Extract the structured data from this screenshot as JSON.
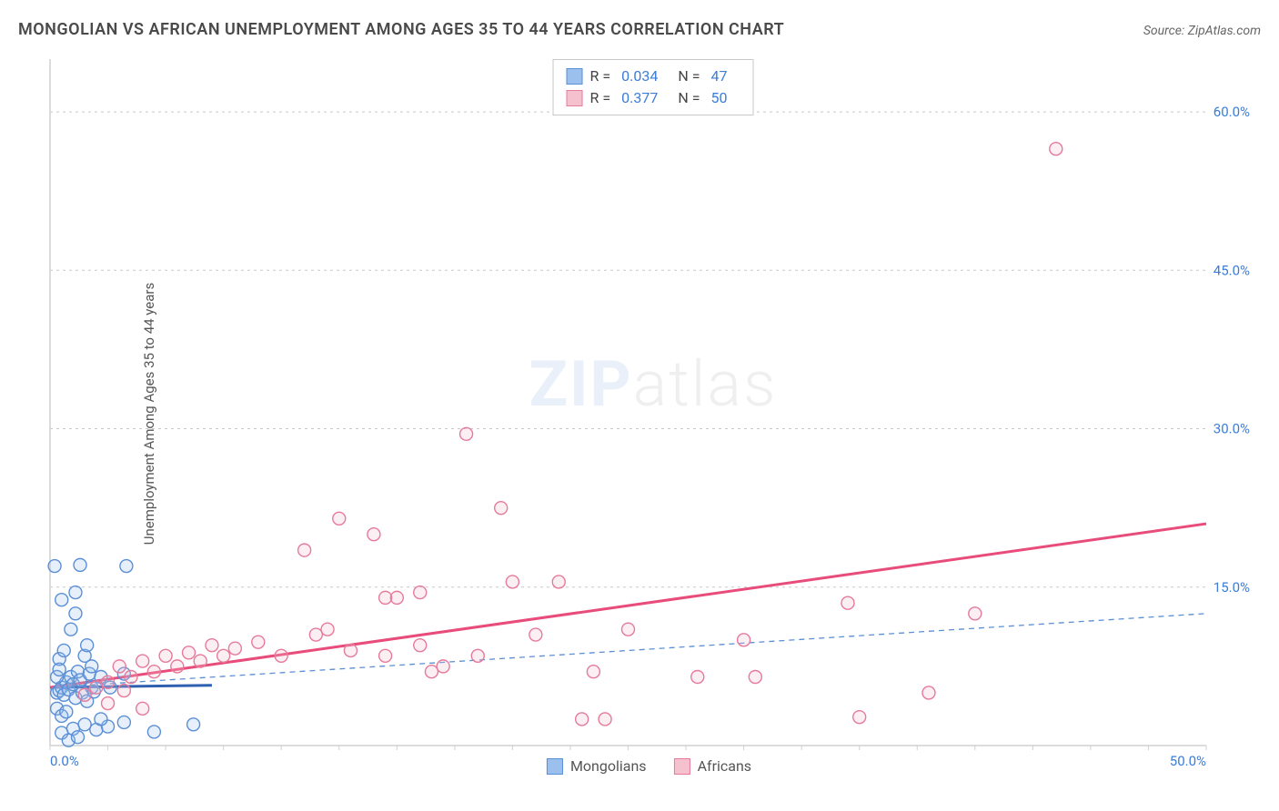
{
  "title": "MONGOLIAN VS AFRICAN UNEMPLOYMENT AMONG AGES 35 TO 44 YEARS CORRELATION CHART",
  "source_label": "Source:",
  "source_name": "ZipAtlas.com",
  "y_axis_label": "Unemployment Among Ages 35 to 44 years",
  "watermark_a": "ZIP",
  "watermark_b": "atlas",
  "chart": {
    "type": "scatter",
    "xlim": [
      0,
      50
    ],
    "ylim": [
      0,
      65
    ],
    "x_ticks": [
      0,
      50
    ],
    "x_tick_labels": [
      "0.0%",
      "50.0%"
    ],
    "y_ticks_right": [
      15,
      30,
      45,
      60
    ],
    "y_tick_labels": [
      "15.0%",
      "30.0%",
      "45.0%",
      "60.0%"
    ],
    "grid_color": "#c8c8c8",
    "axis_color": "#d0d0d0",
    "tick_label_color": "#3b7dd8",
    "tick_label_fontsize": 15,
    "background_color": "#ffffff",
    "marker_radius": 7,
    "marker_stroke_width": 1.4,
    "marker_fill_opacity": 0.25,
    "series": [
      {
        "name": "Mongolians",
        "color_fill": "#9cc0ed",
        "color_stroke": "#5b8fd6",
        "R": "0.034",
        "N": "47",
        "trend_solid": {
          "x1": 0,
          "y1": 5.5,
          "x2": 7,
          "y2": 5.7,
          "color": "#2f5fb0",
          "width": 3
        },
        "trend_dashed": {
          "x1": 0,
          "y1": 5.5,
          "x2": 50,
          "y2": 12.5,
          "color": "#5b8fd6",
          "width": 1.3,
          "dash": "6,5"
        },
        "points": [
          [
            0.3,
            5
          ],
          [
            0.4,
            5.2
          ],
          [
            0.5,
            5.5
          ],
          [
            0.6,
            4.8
          ],
          [
            0.7,
            6
          ],
          [
            0.8,
            5.3
          ],
          [
            0.9,
            6.5
          ],
          [
            1,
            5.8
          ],
          [
            1.1,
            4.5
          ],
          [
            1.2,
            7
          ],
          [
            1.3,
            6.2
          ],
          [
            1.4,
            5
          ],
          [
            1.5,
            8.5
          ],
          [
            1.6,
            4.2
          ],
          [
            1.7,
            6.8
          ],
          [
            1.8,
            5.5
          ],
          [
            0.5,
            1.2
          ],
          [
            1,
            1.6
          ],
          [
            1.5,
            2
          ],
          [
            2,
            1.5
          ],
          [
            2.5,
            1.8
          ],
          [
            3.2,
            2.2
          ],
          [
            4.5,
            1.3
          ],
          [
            0.8,
            0.5
          ],
          [
            1.2,
            0.8
          ],
          [
            2.2,
            2.5
          ],
          [
            0.4,
            8.2
          ],
          [
            0.6,
            9
          ],
          [
            0.5,
            13.8
          ],
          [
            1.1,
            14.5
          ],
          [
            1.3,
            17.1
          ],
          [
            0.2,
            17
          ],
          [
            3.3,
            17
          ],
          [
            1.8,
            7.5
          ],
          [
            2.2,
            6.5
          ],
          [
            2.6,
            5.5
          ],
          [
            3.2,
            6.8
          ],
          [
            0.3,
            3.5
          ],
          [
            0.5,
            2.8
          ],
          [
            0.7,
            3.2
          ],
          [
            6.2,
            2
          ],
          [
            1.6,
            9.5
          ],
          [
            0.9,
            11
          ],
          [
            1.1,
            12.5
          ],
          [
            0.3,
            6.5
          ],
          [
            0.4,
            7.2
          ],
          [
            1.9,
            5.1
          ]
        ]
      },
      {
        "name": "Africans",
        "color_fill": "#f5c1ce",
        "color_stroke": "#e67a9a",
        "R": "0.377",
        "N": "50",
        "trend_solid": {
          "x1": 0,
          "y1": 5.5,
          "x2": 50,
          "y2": 21,
          "color": "#e84c7a",
          "width": 3
        },
        "points": [
          [
            1.5,
            4.8
          ],
          [
            2,
            5.5
          ],
          [
            2.5,
            6
          ],
          [
            3,
            7.5
          ],
          [
            3.5,
            6.5
          ],
          [
            4,
            8
          ],
          [
            4.5,
            7
          ],
          [
            5,
            8.5
          ],
          [
            5.5,
            7.5
          ],
          [
            6,
            8.8
          ],
          [
            6.5,
            8
          ],
          [
            7,
            9.5
          ],
          [
            7.5,
            8.5
          ],
          [
            8,
            9.2
          ],
          [
            9,
            9.8
          ],
          [
            10,
            8.5
          ],
          [
            11,
            18.5
          ],
          [
            11.5,
            10.5
          ],
          [
            12,
            11
          ],
          [
            12.5,
            21.5
          ],
          [
            13,
            9
          ],
          [
            14,
            20
          ],
          [
            14.5,
            8.5
          ],
          [
            15,
            14
          ],
          [
            16,
            9.5
          ],
          [
            16.5,
            7
          ],
          [
            17,
            7.5
          ],
          [
            18,
            29.5
          ],
          [
            18.5,
            8.5
          ],
          [
            19.5,
            22.5
          ],
          [
            20,
            15.5
          ],
          [
            21,
            10.5
          ],
          [
            22,
            15.5
          ],
          [
            23,
            2.5
          ],
          [
            23.5,
            7
          ],
          [
            24,
            2.5
          ],
          [
            25,
            11
          ],
          [
            28,
            6.5
          ],
          [
            30,
            10
          ],
          [
            30.5,
            6.5
          ],
          [
            34.5,
            13.5
          ],
          [
            35,
            2.7
          ],
          [
            38,
            5
          ],
          [
            40,
            12.5
          ],
          [
            43.5,
            56.5
          ],
          [
            14.5,
            14
          ],
          [
            16,
            14.5
          ],
          [
            2.5,
            4
          ],
          [
            4,
            3.5
          ],
          [
            3.2,
            5.2
          ]
        ]
      }
    ],
    "stats_box": {
      "border_color": "#c8c8c8",
      "r_label": "R =",
      "n_label": "N ="
    },
    "legend": {
      "items": [
        "Mongolians",
        "Africans"
      ]
    }
  }
}
